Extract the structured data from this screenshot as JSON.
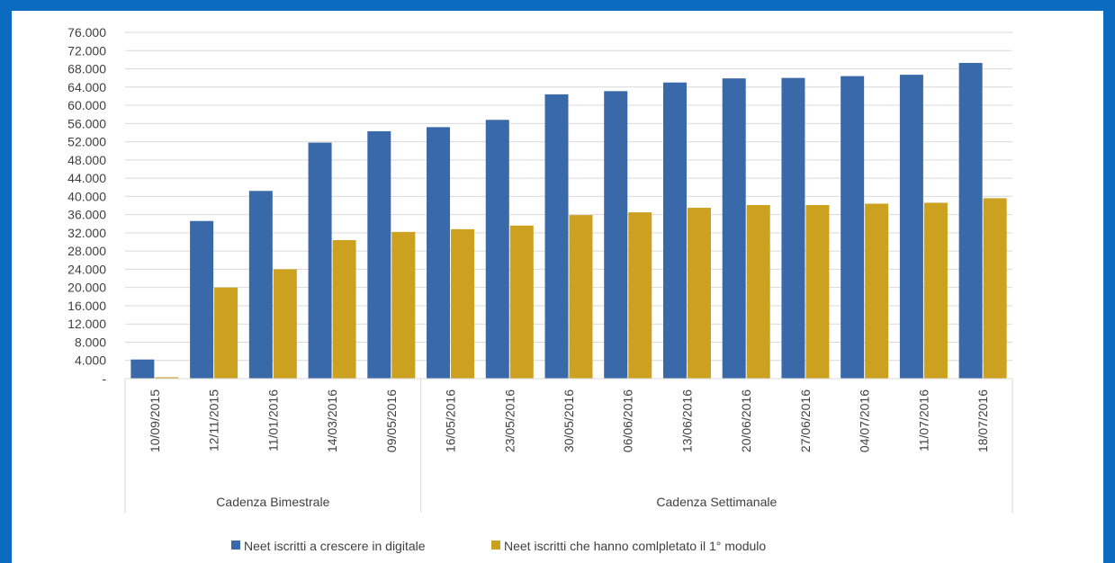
{
  "colors": {
    "frame": "#0b6bbf",
    "series1": "#3a69a9",
    "series2": "#cba11f",
    "grid": "#d9d9d9",
    "text": "#404040"
  },
  "chart_data": {
    "type": "bar",
    "categories": [
      "10/09/2015",
      "12/11/2015",
      "11/01/2016",
      "14/03/2016",
      "09/05/2016",
      "16/05/2016",
      "23/05/2016",
      "30/05/2016",
      "06/06/2016",
      "13/06/2016",
      "20/06/2016",
      "27/06/2016",
      "04/07/2016",
      "11/07/2016",
      "18/07/2016"
    ],
    "groups": [
      {
        "label": "Cadenza Bimestrale",
        "count": 5
      },
      {
        "label": "Cadenza Settimanale",
        "count": 10
      }
    ],
    "series": [
      {
        "name": "Neet iscritti a crescere in digitale",
        "values": [
          4200,
          34600,
          41200,
          51800,
          54300,
          55200,
          56800,
          62400,
          63100,
          65000,
          65900,
          66000,
          66400,
          66700,
          69300
        ]
      },
      {
        "name": "Neet iscritti che hanno comlpletato il 1° modulo",
        "values": [
          300,
          20000,
          24000,
          30400,
          32200,
          32800,
          33600,
          35900,
          36500,
          37500,
          38100,
          38100,
          38400,
          38600,
          39600
        ]
      }
    ],
    "ylim": [
      0,
      76000
    ],
    "yticks": [
      "-",
      "4.000",
      "8.000",
      "12.000",
      "16.000",
      "20.000",
      "24.000",
      "28.000",
      "32.000",
      "36.000",
      "40.000",
      "44.000",
      "48.000",
      "52.000",
      "56.000",
      "60.000",
      "64.000",
      "68.000",
      "72.000",
      "76.000"
    ],
    "grid": true,
    "legend": "bottom-center"
  }
}
